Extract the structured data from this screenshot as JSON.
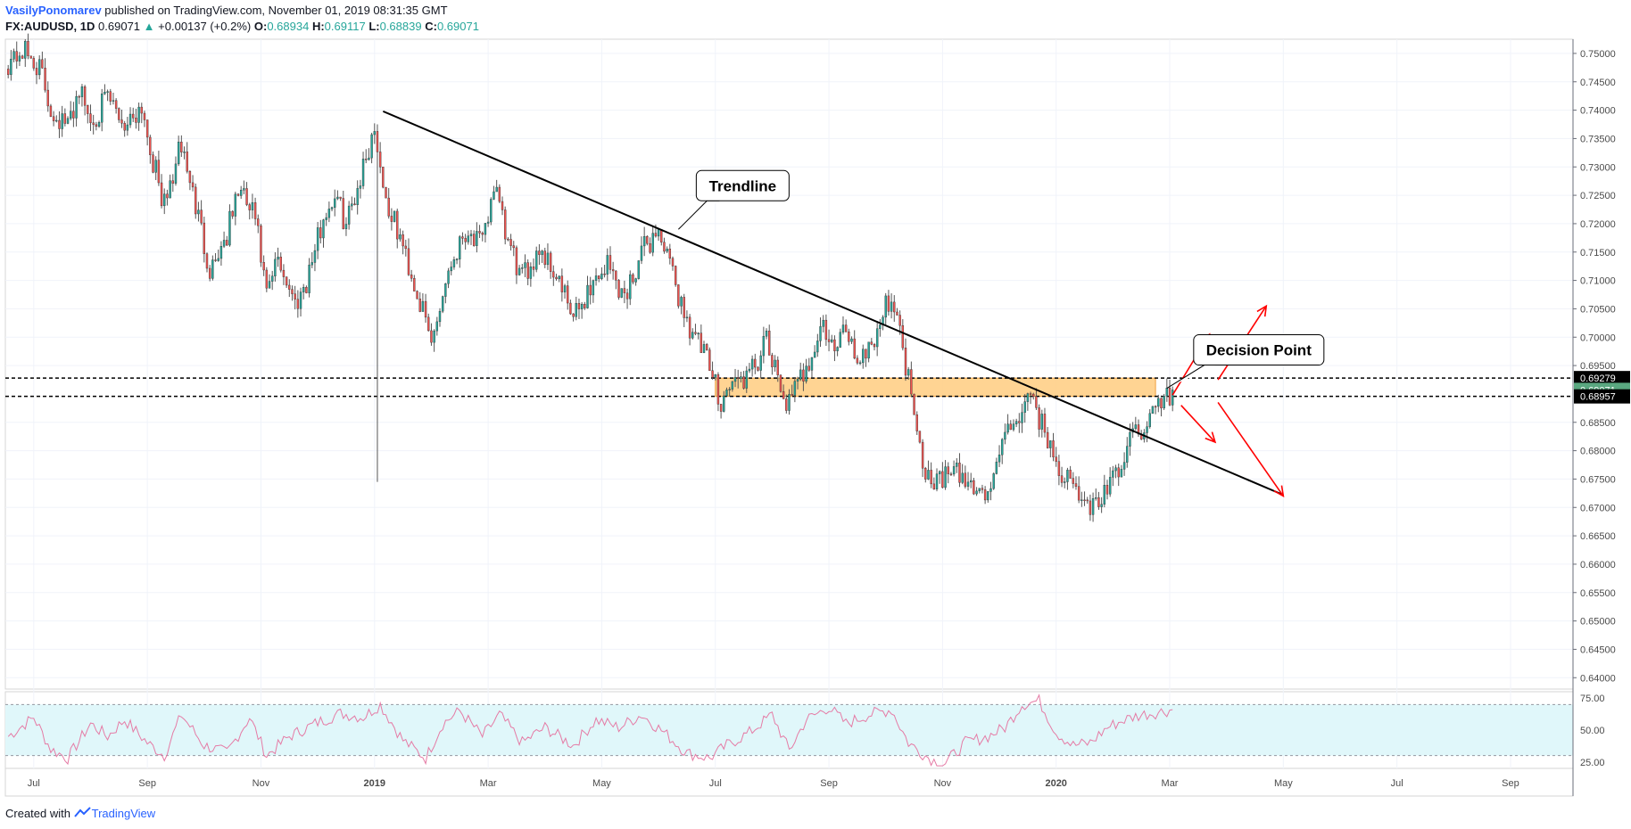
{
  "header": {
    "author": "VasilyPonomarev",
    "published_text": "published on TradingView.com, November 01, 2019 08:31:35 GMT",
    "symbol": "FX:AUDUSD, 1D",
    "last": "0.69071",
    "change_arrow": "▲",
    "change": "+0.00137 (+0.2%)",
    "o_label": "O:",
    "o": "0.68934",
    "h_label": "H:",
    "h": "0.69117",
    "l_label": "L:",
    "l": "0.68839",
    "c_label": "C:",
    "c": "0.69071"
  },
  "footer": {
    "created_with": "Created with",
    "brand": "TradingView"
  },
  "colors": {
    "bull": "#26a69a",
    "bear": "#ef5350",
    "zone": "#ffcc80",
    "rsi_band": "#e0f7fa",
    "rsi_line": "#e57ba5",
    "arrow": "#ff0000"
  },
  "chart_data": [
    {
      "type": "candlestick",
      "symbol": "FX:AUDUSD",
      "interval": "1D",
      "ylim": [
        0.638,
        0.7525
      ],
      "y_ticks": [
        "0.75000",
        "0.74500",
        "0.74000",
        "0.73500",
        "0.73000",
        "0.72500",
        "0.72000",
        "0.71500",
        "0.71000",
        "0.70500",
        "0.70000",
        "0.69500",
        "0.68500",
        "0.68000",
        "0.67500",
        "0.67000",
        "0.66500",
        "0.66000",
        "0.65500",
        "0.65000",
        "0.64500",
        "0.64000"
      ],
      "x_ticks": [
        "Jul",
        "Sep",
        "Nov",
        "2019",
        "Mar",
        "May",
        "Jul",
        "Sep",
        "Nov",
        "2020",
        "Mar",
        "May",
        "Jul",
        "Sep"
      ],
      "x_tick_months": [
        0,
        2,
        4,
        6,
        8,
        10,
        12,
        14,
        16,
        18,
        20,
        22,
        24,
        26
      ],
      "x_start_month": -0.5,
      "x_end_month": 27.1,
      "price_path": [
        {
          "m": -0.45,
          "p": 0.7485
        },
        {
          "m": -0.2,
          "p": 0.7505
        },
        {
          "m": 0.1,
          "p": 0.7475
        },
        {
          "m": 0.3,
          "p": 0.74
        },
        {
          "m": 0.6,
          "p": 0.737
        },
        {
          "m": 0.8,
          "p": 0.744
        },
        {
          "m": 1.0,
          "p": 0.738
        },
        {
          "m": 1.3,
          "p": 0.742
        },
        {
          "m": 1.6,
          "p": 0.7375
        },
        {
          "m": 1.9,
          "p": 0.741
        },
        {
          "m": 2.1,
          "p": 0.731
        },
        {
          "m": 2.3,
          "p": 0.723
        },
        {
          "m": 2.6,
          "p": 0.734
        },
        {
          "m": 2.9,
          "p": 0.721
        },
        {
          "m": 3.1,
          "p": 0.712
        },
        {
          "m": 3.4,
          "p": 0.718
        },
        {
          "m": 3.6,
          "p": 0.726
        },
        {
          "m": 3.9,
          "p": 0.721
        },
        {
          "m": 4.1,
          "p": 0.707
        },
        {
          "m": 4.3,
          "p": 0.714
        },
        {
          "m": 4.6,
          "p": 0.706
        },
        {
          "m": 4.8,
          "p": 0.71
        },
        {
          "m": 5.1,
          "p": 0.721
        },
        {
          "m": 5.3,
          "p": 0.725
        },
        {
          "m": 5.5,
          "p": 0.72
        },
        {
          "m": 5.8,
          "p": 0.73
        },
        {
          "m": 6.0,
          "p": 0.737
        },
        {
          "m": 6.2,
          "p": 0.724
        },
        {
          "m": 6.5,
          "p": 0.716
        },
        {
          "m": 6.8,
          "p": 0.706
        },
        {
          "m": 7.0,
          "p": 0.699
        },
        {
          "m": 7.3,
          "p": 0.712
        },
        {
          "m": 7.6,
          "p": 0.719
        },
        {
          "m": 7.9,
          "p": 0.716
        },
        {
          "m": 8.1,
          "p": 0.727
        },
        {
          "m": 8.3,
          "p": 0.718
        },
        {
          "m": 8.6,
          "p": 0.71
        },
        {
          "m": 8.9,
          "p": 0.716
        },
        {
          "m": 9.2,
          "p": 0.711
        },
        {
          "m": 9.5,
          "p": 0.703
        },
        {
          "m": 9.8,
          "p": 0.709
        },
        {
          "m": 10.1,
          "p": 0.713
        },
        {
          "m": 10.4,
          "p": 0.707
        },
        {
          "m": 10.7,
          "p": 0.715
        },
        {
          "m": 11.0,
          "p": 0.719
        },
        {
          "m": 11.3,
          "p": 0.709
        },
        {
          "m": 11.5,
          "p": 0.703
        },
        {
          "m": 11.8,
          "p": 0.697
        },
        {
          "m": 12.1,
          "p": 0.689
        },
        {
          "m": 12.3,
          "p": 0.692
        },
        {
          "m": 12.6,
          "p": 0.693
        },
        {
          "m": 12.9,
          "p": 0.699
        },
        {
          "m": 13.1,
          "p": 0.692
        },
        {
          "m": 13.3,
          "p": 0.688
        },
        {
          "m": 13.6,
          "p": 0.695
        },
        {
          "m": 13.9,
          "p": 0.702
        },
        {
          "m": 14.1,
          "p": 0.697
        },
        {
          "m": 14.3,
          "p": 0.702
        },
        {
          "m": 14.5,
          "p": 0.696
        },
        {
          "m": 14.8,
          "p": 0.7
        },
        {
          "m": 15.1,
          "p": 0.708
        },
        {
          "m": 15.3,
          "p": 0.698
        },
        {
          "m": 15.5,
          "p": 0.688
        },
        {
          "m": 15.7,
          "p": 0.676
        },
        {
          "m": 15.9,
          "p": 0.675
        },
        {
          "m": 16.2,
          "p": 0.676
        },
        {
          "m": 16.5,
          "p": 0.674
        },
        {
          "m": 16.8,
          "p": 0.672
        },
        {
          "m": 17.0,
          "p": 0.68
        },
        {
          "m": 17.3,
          "p": 0.686
        },
        {
          "m": 17.6,
          "p": 0.689
        },
        {
          "m": 17.8,
          "p": 0.683
        },
        {
          "m": 18.1,
          "p": 0.676
        },
        {
          "m": 18.4,
          "p": 0.672
        },
        {
          "m": 18.6,
          "p": 0.67
        },
        {
          "m": 18.9,
          "p": 0.673
        },
        {
          "m": 19.1,
          "p": 0.676
        },
        {
          "m": 19.3,
          "p": 0.682
        },
        {
          "m": 19.6,
          "p": 0.685
        },
        {
          "m": 19.8,
          "p": 0.688
        },
        {
          "m": 20.05,
          "p": 0.6907
        }
      ],
      "trendline": [
        {
          "m": 6.15,
          "p": 0.7398
        },
        {
          "m": 22.0,
          "p": 0.6722
        }
      ],
      "horizontal_levels": [
        0.69279,
        0.68957
      ],
      "price_labels": [
        {
          "text": "0.69279",
          "value": 0.69279,
          "style": "black"
        },
        {
          "text": "0.69071",
          "value": 0.69071,
          "style": "green"
        },
        {
          "text": "0.68957",
          "value": 0.68957,
          "style": "black"
        }
      ],
      "zone": {
        "from_month": 12.0,
        "to_month": 19.75,
        "top": 0.69279,
        "bottom": 0.68957
      },
      "callouts": [
        {
          "text": "Trendline",
          "anchor_month": 11.35,
          "anchor_price": 0.719
        },
        {
          "text": "Decision Point",
          "anchor_month": 19.95,
          "anchor_price": 0.691
        }
      ],
      "scenario_arrows": [
        {
          "from_m": 20.05,
          "from_p": 0.6898,
          "to_m": 20.7,
          "to_p": 0.7005
        },
        {
          "from_m": 20.85,
          "from_p": 0.6925,
          "to_m": 21.7,
          "to_p": 0.7055
        },
        {
          "from_m": 20.2,
          "from_p": 0.688,
          "to_m": 20.8,
          "to_p": 0.6815
        },
        {
          "from_m": 20.85,
          "from_p": 0.6885,
          "to_m": 22.0,
          "to_p": 0.672
        }
      ]
    },
    {
      "type": "line",
      "name": "",
      "ylim": [
        20,
        80
      ],
      "y_ticks": [
        "75.00",
        "50.00",
        "25.00"
      ],
      "band": [
        30,
        70
      ],
      "points": [
        {
          "m": -0.45,
          "v": 45
        },
        {
          "m": 0.0,
          "v": 60
        },
        {
          "m": 0.3,
          "v": 35
        },
        {
          "m": 0.6,
          "v": 28
        },
        {
          "m": 1.0,
          "v": 55
        },
        {
          "m": 1.3,
          "v": 45
        },
        {
          "m": 1.6,
          "v": 58
        },
        {
          "m": 2.0,
          "v": 40
        },
        {
          "m": 2.3,
          "v": 30
        },
        {
          "m": 2.6,
          "v": 62
        },
        {
          "m": 3.0,
          "v": 38
        },
        {
          "m": 3.4,
          "v": 32
        },
        {
          "m": 3.8,
          "v": 60
        },
        {
          "m": 4.1,
          "v": 30
        },
        {
          "m": 4.5,
          "v": 45
        },
        {
          "m": 5.0,
          "v": 56
        },
        {
          "m": 5.4,
          "v": 63
        },
        {
          "m": 5.8,
          "v": 60
        },
        {
          "m": 6.1,
          "v": 70
        },
        {
          "m": 6.5,
          "v": 42
        },
        {
          "m": 6.9,
          "v": 28
        },
        {
          "m": 7.2,
          "v": 55
        },
        {
          "m": 7.5,
          "v": 65
        },
        {
          "m": 7.9,
          "v": 45
        },
        {
          "m": 8.2,
          "v": 62
        },
        {
          "m": 8.6,
          "v": 40
        },
        {
          "m": 9.0,
          "v": 52
        },
        {
          "m": 9.5,
          "v": 38
        },
        {
          "m": 9.9,
          "v": 58
        },
        {
          "m": 10.3,
          "v": 52
        },
        {
          "m": 10.7,
          "v": 62
        },
        {
          "m": 11.1,
          "v": 48
        },
        {
          "m": 11.5,
          "v": 32
        },
        {
          "m": 11.9,
          "v": 28
        },
        {
          "m": 12.2,
          "v": 38
        },
        {
          "m": 12.6,
          "v": 48
        },
        {
          "m": 13.0,
          "v": 62
        },
        {
          "m": 13.3,
          "v": 34
        },
        {
          "m": 13.6,
          "v": 58
        },
        {
          "m": 14.0,
          "v": 68
        },
        {
          "m": 14.3,
          "v": 55
        },
        {
          "m": 14.7,
          "v": 62
        },
        {
          "m": 15.1,
          "v": 66
        },
        {
          "m": 15.4,
          "v": 40
        },
        {
          "m": 15.7,
          "v": 30
        },
        {
          "m": 16.0,
          "v": 22
        },
        {
          "m": 16.4,
          "v": 40
        },
        {
          "m": 16.8,
          "v": 45
        },
        {
          "m": 17.1,
          "v": 52
        },
        {
          "m": 17.4,
          "v": 70
        },
        {
          "m": 17.7,
          "v": 73
        },
        {
          "m": 18.0,
          "v": 48
        },
        {
          "m": 18.3,
          "v": 38
        },
        {
          "m": 18.6,
          "v": 40
        },
        {
          "m": 18.9,
          "v": 52
        },
        {
          "m": 19.2,
          "v": 58
        },
        {
          "m": 19.5,
          "v": 62
        },
        {
          "m": 19.8,
          "v": 64
        },
        {
          "m": 20.05,
          "v": 66
        }
      ]
    }
  ]
}
